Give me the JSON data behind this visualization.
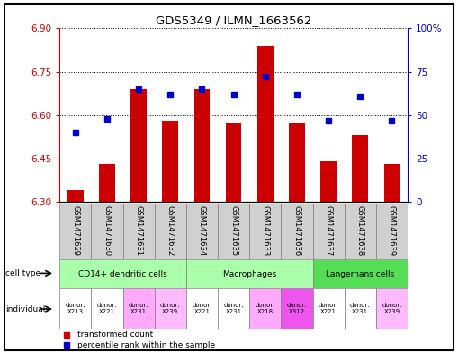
{
  "title": "GDS5349 / ILMN_1663562",
  "samples": [
    "GSM1471629",
    "GSM1471630",
    "GSM1471631",
    "GSM1471632",
    "GSM1471634",
    "GSM1471635",
    "GSM1471633",
    "GSM1471636",
    "GSM1471637",
    "GSM1471638",
    "GSM1471639"
  ],
  "red_values": [
    6.34,
    6.43,
    6.69,
    6.58,
    6.69,
    6.57,
    6.84,
    6.57,
    6.44,
    6.53,
    6.43
  ],
  "blue_values": [
    40,
    48,
    65,
    62,
    65,
    62,
    72,
    62,
    47,
    61,
    47
  ],
  "ylim_left": [
    6.3,
    6.9
  ],
  "ylim_right": [
    0,
    100
  ],
  "yticks_left": [
    6.3,
    6.45,
    6.6,
    6.75,
    6.9
  ],
  "yticks_right": [
    0,
    25,
    50,
    75,
    100
  ],
  "ytick_labels_right": [
    "0",
    "25",
    "50",
    "75",
    "100%"
  ],
  "cell_groups": [
    {
      "label": "CD14+ dendritic cells",
      "start": 0,
      "end": 3,
      "color": "#aaffaa"
    },
    {
      "label": "Macrophages",
      "start": 4,
      "end": 7,
      "color": "#aaffaa"
    },
    {
      "label": "Langerhans cells",
      "start": 8,
      "end": 10,
      "color": "#55dd55"
    }
  ],
  "donor_labels": [
    "donor:\nX213",
    "donor:\nX221",
    "donor:\nX231",
    "donor:\nX239",
    "donor:\nX221",
    "donor:\nX231",
    "donor:\nX218",
    "donor:\nX312",
    "donor:\nX221",
    "donor:\nX231",
    "donor:\nX239"
  ],
  "donor_bg": [
    "#ffffff",
    "#ffffff",
    "#ffaaff",
    "#ffbbff",
    "#ffffff",
    "#ffffff",
    "#ffaaff",
    "#ee55ee",
    "#ffffff",
    "#ffffff",
    "#ffbbff"
  ],
  "bar_color": "#cc0000",
  "dot_color": "#0000cc",
  "bar_base": 6.3,
  "left_tick_color": "#cc0000",
  "right_tick_color": "#0000cc",
  "sample_box_color": "#d0d0d0"
}
